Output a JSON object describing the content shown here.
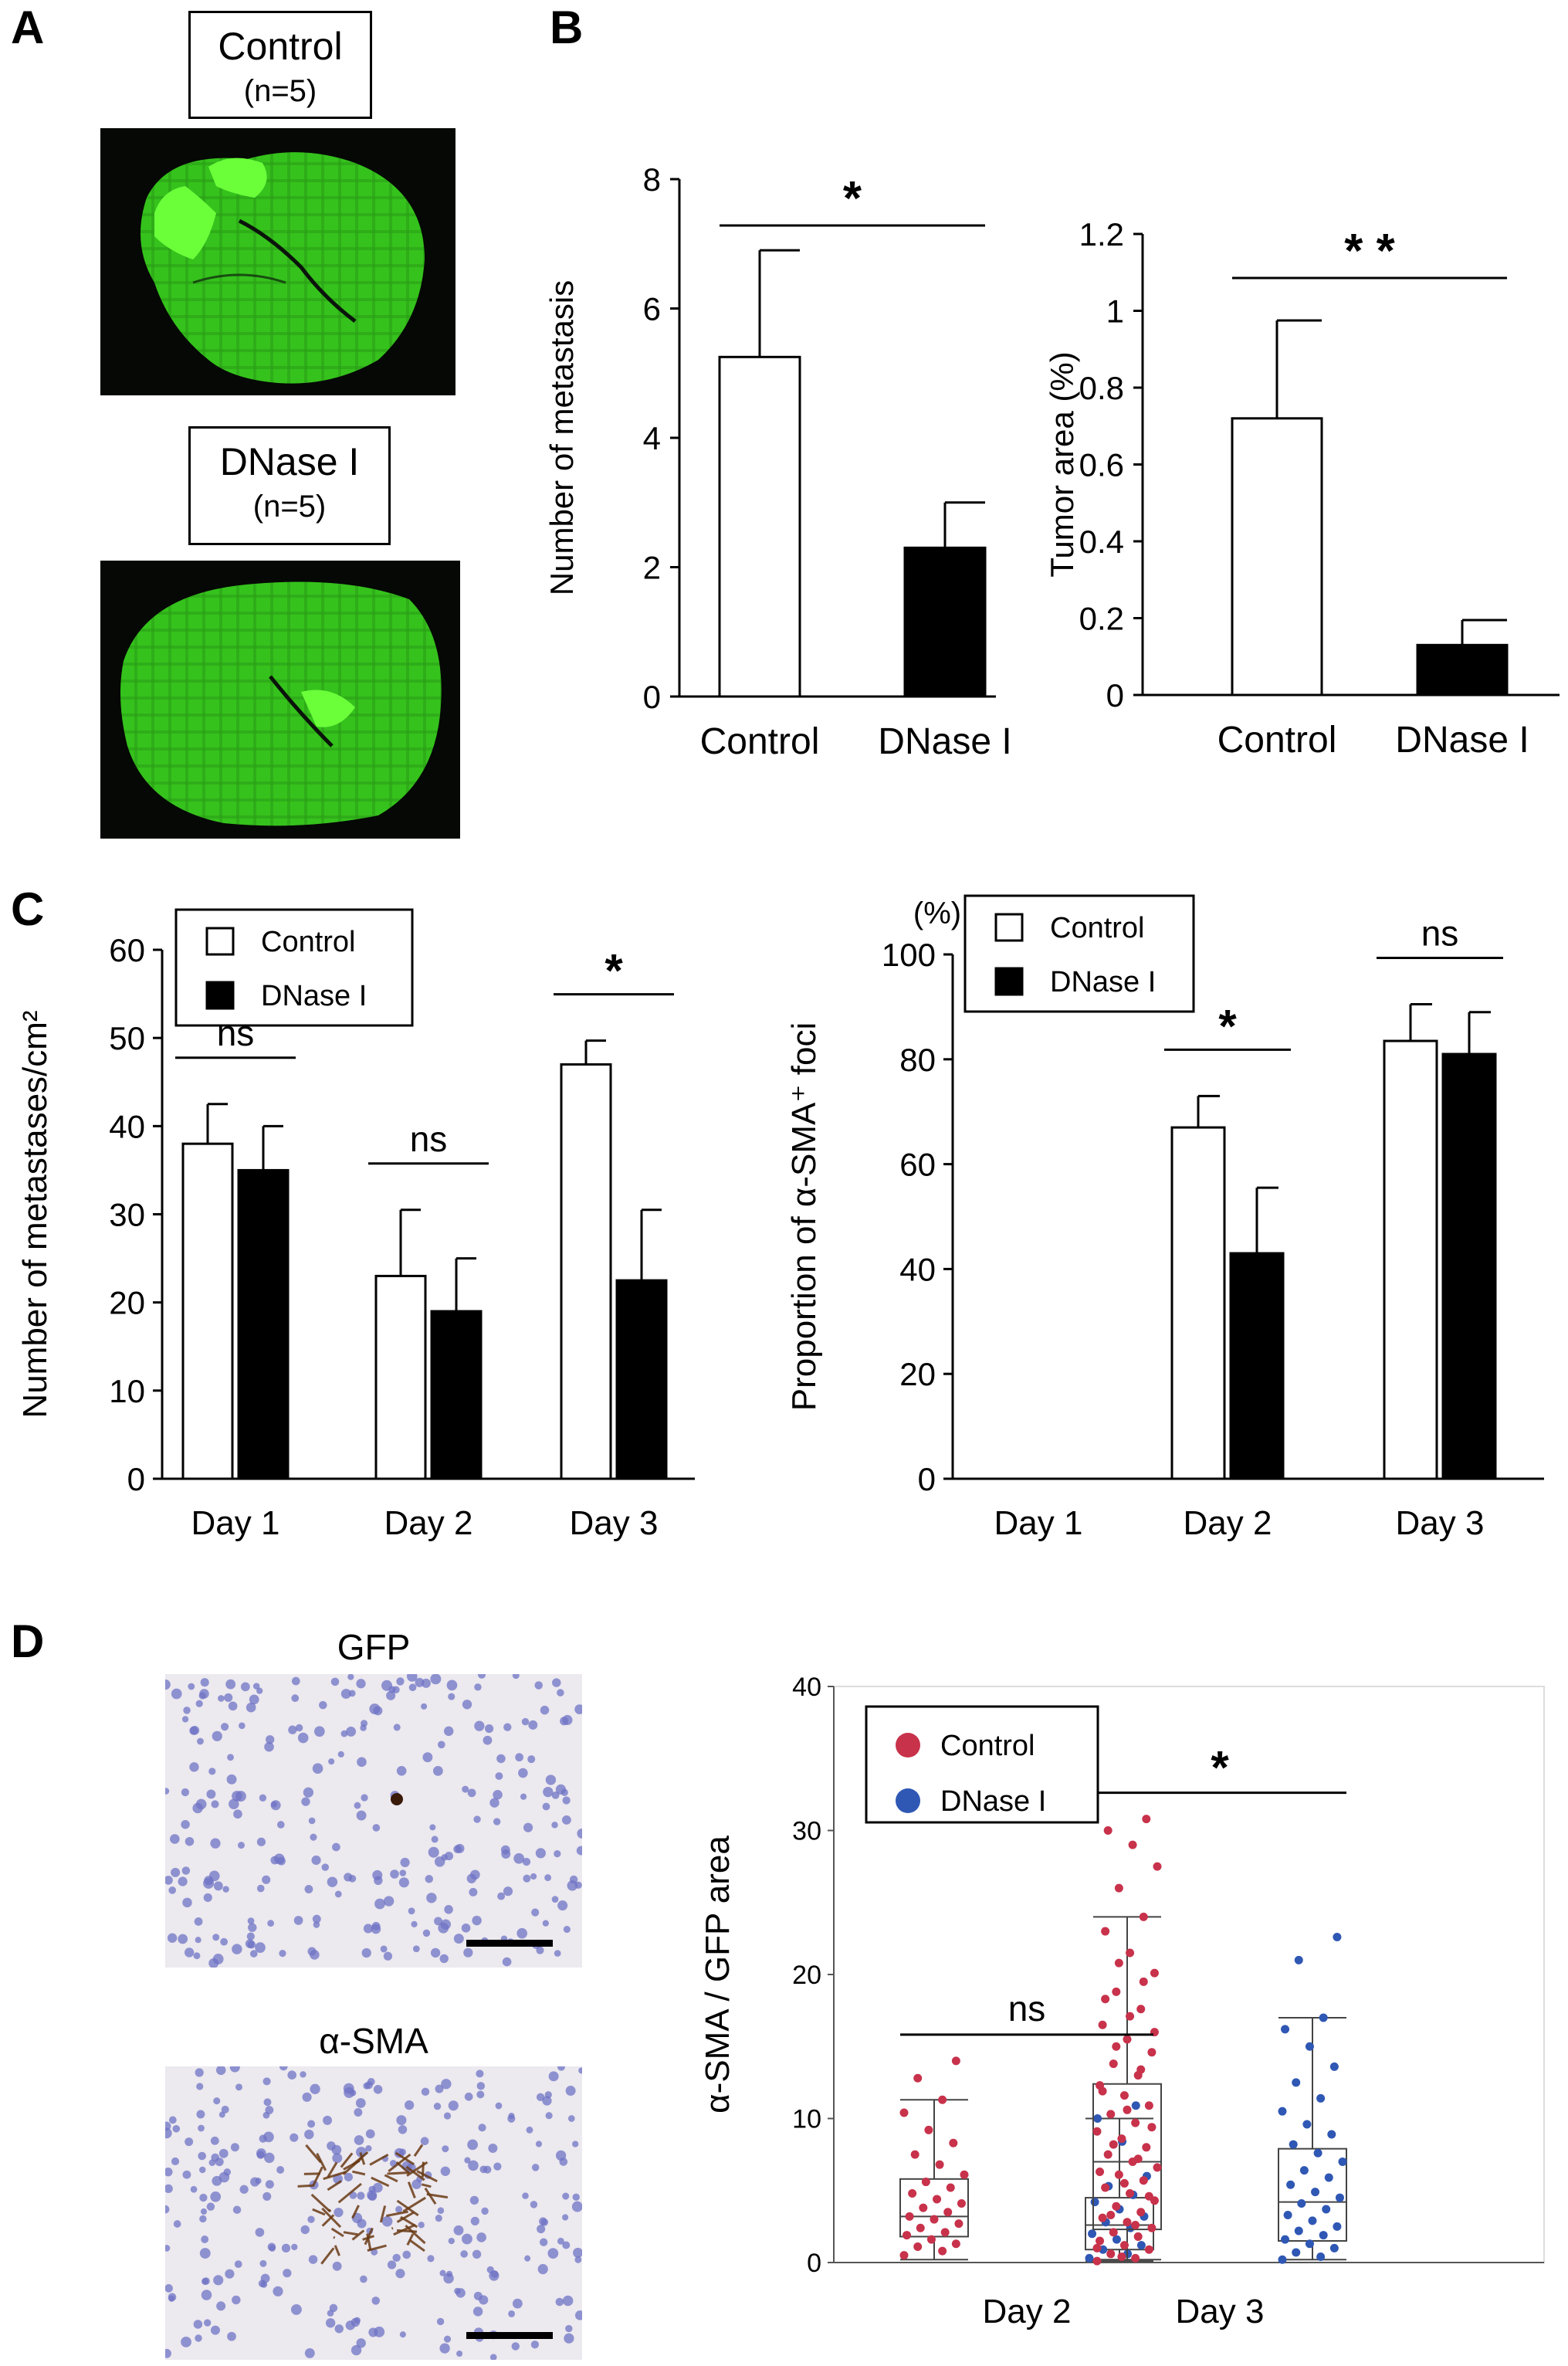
{
  "panels": {
    "a": "A",
    "b": "B",
    "c": "C",
    "d": "D"
  },
  "panel_a": {
    "control": {
      "title": "Control",
      "n": "(n=5)"
    },
    "dnase": {
      "title": "DNase I",
      "n": "(n=5)"
    }
  },
  "panel_d": {
    "gfp_title": "GFP",
    "sma_title": "α-SMA"
  },
  "colors": {
    "control_dot": "#c8324b",
    "dnase_dot": "#2f57b4",
    "gfp_green": "#3ad11e"
  },
  "chart_data": [
    {
      "id": "b1",
      "type": "bar",
      "categories": [
        "Control",
        "DNase I"
      ],
      "values": [
        5.25,
        2.3
      ],
      "errors": [
        1.65,
        0.7
      ],
      "fills": [
        "#ffffff",
        "#000000"
      ],
      "ylabel": "Number of metastasis",
      "ylim": [
        0,
        8
      ],
      "yticks": [
        "0",
        "2",
        "4",
        "6",
        "8"
      ],
      "significance": [
        {
          "label": "*",
          "from": 0,
          "to": 1
        }
      ]
    },
    {
      "id": "b2",
      "type": "bar",
      "categories": [
        "Control",
        "DNase I"
      ],
      "values": [
        0.72,
        0.13
      ],
      "errors": [
        0.255,
        0.065
      ],
      "fills": [
        "#ffffff",
        "#000000"
      ],
      "ylabel": "Tumor area (%)",
      "ylim": [
        0,
        1.2
      ],
      "yticks": [
        "0",
        "0.2",
        "0.4",
        "0.6",
        "0.8",
        "1",
        "1.2"
      ],
      "significance": [
        {
          "label": "* *",
          "from": 0,
          "to": 1
        }
      ]
    },
    {
      "id": "c1",
      "type": "bar",
      "categories": [
        "Day 1",
        "Day 2",
        "Day 3"
      ],
      "series": [
        {
          "name": "Control",
          "values": [
            38,
            23,
            47
          ],
          "errors": [
            4.5,
            7.5,
            2.7
          ],
          "fill": "#ffffff"
        },
        {
          "name": "DNase I",
          "values": [
            35,
            19,
            22.5
          ],
          "errors": [
            5,
            6,
            8
          ],
          "fill": "#000000"
        }
      ],
      "ylabel": "Number of metastases/cm²",
      "ylim": [
        0,
        60
      ],
      "yticks": [
        "0",
        "10",
        "20",
        "30",
        "40",
        "50",
        "60"
      ],
      "legend": "top-left",
      "significance": [
        {
          "label": "ns",
          "category": 0
        },
        {
          "label": "ns",
          "category": 1
        },
        {
          "label": "*",
          "category": 2
        }
      ]
    },
    {
      "id": "c2",
      "type": "bar",
      "categories": [
        "Day 1",
        "Day 2",
        "Day 3"
      ],
      "series": [
        {
          "name": "Control",
          "values": [
            0,
            67,
            83.5
          ],
          "errors": [
            0,
            6,
            7
          ],
          "fill": "#ffffff"
        },
        {
          "name": "DNase I",
          "values": [
            0,
            43,
            81
          ],
          "errors": [
            0,
            12.5,
            8
          ],
          "fill": "#000000"
        }
      ],
      "ylabel": "Proportion of α-SMA⁺ foci",
      "yunit": "(%)",
      "ylim": [
        0,
        100
      ],
      "yticks": [
        "0",
        "20",
        "40",
        "60",
        "80",
        "100"
      ],
      "legend": "top-left",
      "significance": [
        {
          "label": "*",
          "category": 1
        },
        {
          "label": "ns",
          "category": 2
        }
      ]
    },
    {
      "id": "d1",
      "type": "box",
      "categories": [
        "Day 2",
        "Day 3"
      ],
      "series": [
        {
          "name": "Control",
          "color": "#c8324b",
          "boxes": [
            {
              "category": "Day 2",
              "min": 0.2,
              "q1": 1.8,
              "median": 3.2,
              "q3": 5.8,
              "max": 11.3
            },
            {
              "category": "Day 3",
              "min": 0.2,
              "q1": 2.3,
              "median": 7.0,
              "q3": 12.4,
              "max": 24.0
            }
          ],
          "points": [
            [
              0.5,
              0.8,
              1.1,
              1.3,
              1.6,
              1.9,
              2.1,
              2.4,
              2.7,
              3.0,
              3.2,
              3.5,
              3.8,
              4.1,
              4.4,
              4.8,
              5.2,
              5.6,
              6.1,
              6.8,
              7.5,
              8.3,
              9.2,
              10.4,
              11.3,
              12.8,
              14.0
            ],
            [
              0.1,
              0.3,
              0.6,
              0.9,
              1.2,
              1.5,
              1.8,
              2.1,
              2.4,
              2.8,
              3.1,
              3.5,
              3.9,
              4.3,
              4.8,
              5.2,
              5.7,
              6.1,
              6.6,
              7.0,
              7.5,
              8.0,
              8.6,
              9.1,
              9.7,
              10.3,
              10.9,
              11.6,
              12.3,
              13.0,
              13.8,
              14.6,
              15.5,
              16.5,
              17.6,
              18.8,
              20.1,
              21.5,
              23.0,
              24.0,
              26.0,
              27.5,
              29.0,
              30.0,
              30.8,
              0.4,
              1.0,
              2.6,
              3.3,
              4.6,
              5.5,
              6.3,
              7.2,
              8.2,
              9.4,
              10.6,
              11.9,
              13.4,
              15.0,
              16.0,
              17.1,
              18.3,
              19.5,
              20.8
            ]
          ]
        },
        {
          "name": "DNase I",
          "color": "#2f57b4",
          "boxes": [
            {
              "category": "Day 2",
              "min": 0.1,
              "q1": 0.9,
              "median": 2.6,
              "q3": 4.5,
              "max": 10.0
            },
            {
              "category": "Day 3",
              "min": 0.2,
              "q1": 1.5,
              "median": 4.2,
              "q3": 7.9,
              "max": 17.0
            }
          ],
          "points": [
            [
              0.3,
              0.6,
              0.9,
              1.2,
              1.6,
              2.0,
              2.4,
              2.8,
              3.2,
              3.7,
              4.2,
              4.7,
              5.3,
              6.0,
              8.4,
              10.0,
              10.9
            ],
            [
              0.2,
              0.4,
              0.7,
              1.0,
              1.3,
              1.6,
              1.9,
              2.2,
              2.5,
              2.9,
              3.3,
              3.7,
              4.1,
              4.5,
              4.9,
              5.4,
              5.9,
              6.4,
              7.0,
              7.6,
              8.2,
              8.9,
              9.6,
              10.5,
              11.4,
              12.5,
              13.6,
              15.0,
              16.2,
              17.0,
              21.0,
              22.6
            ]
          ]
        }
      ],
      "ylabel": "α-SMA / GFP area",
      "ylim": [
        0,
        40
      ],
      "yticks": [
        "0",
        "10",
        "20",
        "30",
        "40"
      ],
      "legend": "top-left",
      "significance": [
        {
          "label": "ns",
          "category": 0
        },
        {
          "label": "*",
          "category": 1
        }
      ]
    }
  ]
}
